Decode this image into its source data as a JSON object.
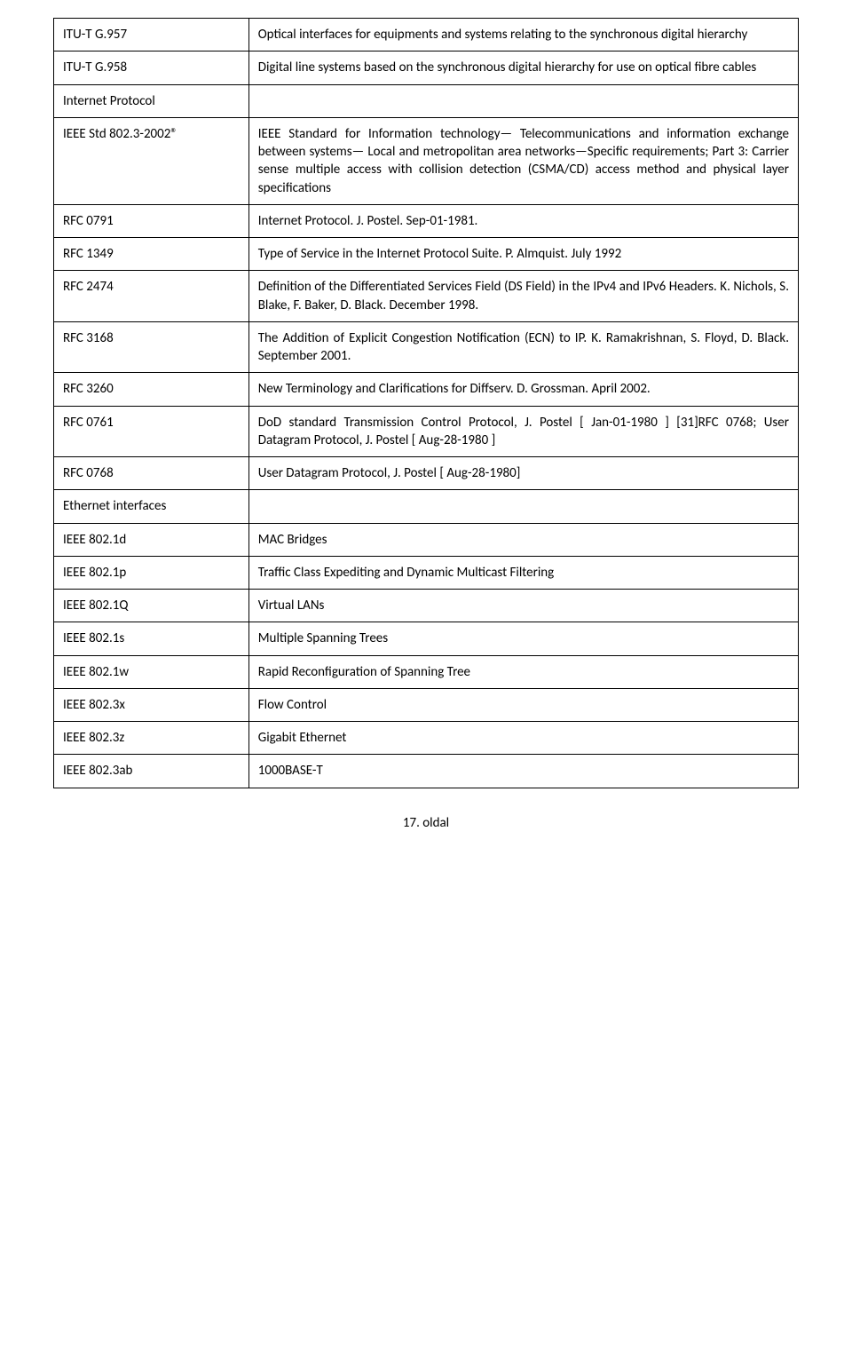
{
  "rows": [
    {
      "left": "ITU-T G.957",
      "right": "Optical interfaces for equipments and systems relating to the synchronous digital hierarchy"
    },
    {
      "left": "ITU-T G.958",
      "right": "Digital line systems based on the synchronous digital hierarchy for use on optical fibre cables"
    },
    {
      "left": "Internet Protocol",
      "right": ""
    },
    {
      "left": "IEEE Std 802.3-2002®",
      "right": "IEEE Standard for Information technology— Telecommunications and information exchange between systems— Local and metropolitan area networks—Specific requirements;\nPart 3: Carrier sense multiple access with collision detection (CSMA/CD) access method and physical layer specifications"
    },
    {
      "left": "RFC 0791",
      "right": "Internet Protocol. J. Postel. Sep-01-1981."
    },
    {
      "left": "RFC 1349",
      "right": "Type of Service in the Internet Protocol Suite. P. Almquist. July 1992"
    },
    {
      "left": "RFC 2474",
      "right": "Definition of the Differentiated Services Field\n(DS Field) in the IPv4 and IPv6 Headers. K. Nichols, S. Blake, F. Baker, D. Black. December 1998."
    },
    {
      "left": "RFC 3168",
      "right": "The Addition of Explicit Congestion Notification\n(ECN)  to IP. K. Ramakrishnan, S. Floyd, D. Black. September 2001."
    },
    {
      "left": "RFC 3260",
      "right": "New Terminology and Clarifications for Diffserv. D. Grossman. April 2002."
    },
    {
      "left": "RFC 0761",
      "right": "DoD standard Transmission Control Protocol, J. Postel [ Jan-01-1980 ] [31]RFC 0768; User Datagram Protocol, J. Postel [ Aug-28-1980 ]"
    },
    {
      "left": "RFC 0768",
      "right": "User Datagram Protocol, J. Postel [ Aug-28-1980]"
    },
    {
      "left": "Ethernet interfaces",
      "right": ""
    },
    {
      "left": "IEEE 802.1d",
      "right": "MAC Bridges"
    },
    {
      "left": "IEEE 802.1p",
      "right": "Traffic Class Expediting and Dynamic Multicast Filtering"
    },
    {
      "left": "IEEE 802.1Q",
      "right": "Virtual LANs"
    },
    {
      "left": "IEEE 802.1s",
      "right": "Multiple Spanning Trees"
    },
    {
      "left": "IEEE 802.1w",
      "right": "Rapid Reconfiguration of Spanning Tree"
    },
    {
      "left": "IEEE 802.3x",
      "right": "Flow Control"
    },
    {
      "left": "IEEE 802.3z",
      "right": "Gigabit Ethernet"
    },
    {
      "left": "IEEE 802.3ab",
      "right": "1000BASE-T"
    }
  ],
  "footer": "17. oldal"
}
